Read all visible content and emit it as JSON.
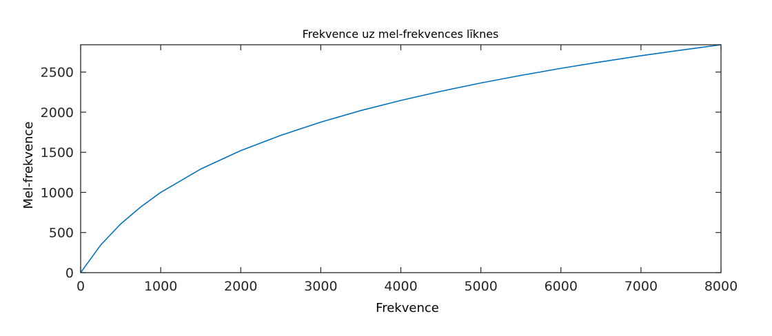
{
  "chart_data": {
    "type": "line",
    "title": "Frekvence uz mel-frekvences līknes",
    "xlabel": "Frekvence",
    "ylabel": "Mel-frekvence",
    "xlim": [
      0,
      8000
    ],
    "ylim": [
      0,
      2840
    ],
    "xticks": [
      0,
      1000,
      2000,
      3000,
      4000,
      5000,
      6000,
      7000,
      8000
    ],
    "yticks": [
      0,
      500,
      1000,
      1500,
      2000,
      2500
    ],
    "grid": false,
    "series": [
      {
        "color": "#0072BD",
        "x": [
          0,
          250,
          500,
          750,
          1000,
          1500,
          2000,
          2500,
          3000,
          3500,
          4000,
          4500,
          5000,
          5500,
          6000,
          6500,
          7000,
          7500,
          8000
        ],
        "y": [
          0,
          344,
          607,
          818,
          1000,
          1291,
          1521,
          1711,
          1876,
          2020,
          2146,
          2260,
          2364,
          2458,
          2546,
          2627,
          2703,
          2773,
          2840
        ]
      }
    ]
  }
}
